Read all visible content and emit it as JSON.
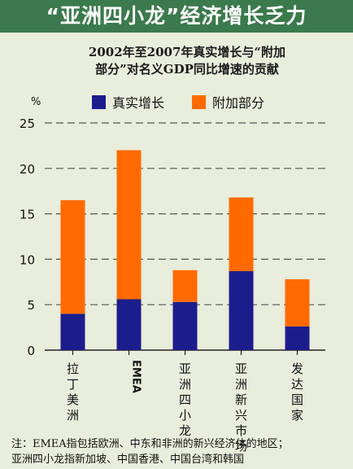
{
  "header": {
    "title": "“亚洲四小龙”经济增长乏力"
  },
  "chart_data": {
    "type": "bar",
    "stacked": true,
    "title": "2002年至2007年真实增长与“附加\n部分”对名义GDP同比增速的贡献",
    "ylabel": "%",
    "ylim": [
      0,
      25
    ],
    "yticks": [
      0,
      5,
      10,
      15,
      20,
      25
    ],
    "grid": true,
    "legend_position": "top",
    "categories": [
      "拉丁美洲",
      "EMEA",
      "亚洲四小龙",
      "亚洲新兴市场",
      "发达国家"
    ],
    "series": [
      {
        "name": "真实增长",
        "color": "#1c1d8c",
        "values": [
          4.0,
          5.6,
          5.3,
          8.7,
          2.6
        ]
      },
      {
        "name": "附加部分",
        "color": "#ff6a00",
        "values": [
          12.5,
          16.4,
          3.5,
          8.1,
          5.2
        ]
      }
    ]
  },
  "footnote": {
    "line1": "注：EMEA指包括欧洲、中东和非洲的新兴经济体的地区；",
    "line2": "亚洲四小龙指新加坡、中国香港、中国台湾和韩国"
  }
}
